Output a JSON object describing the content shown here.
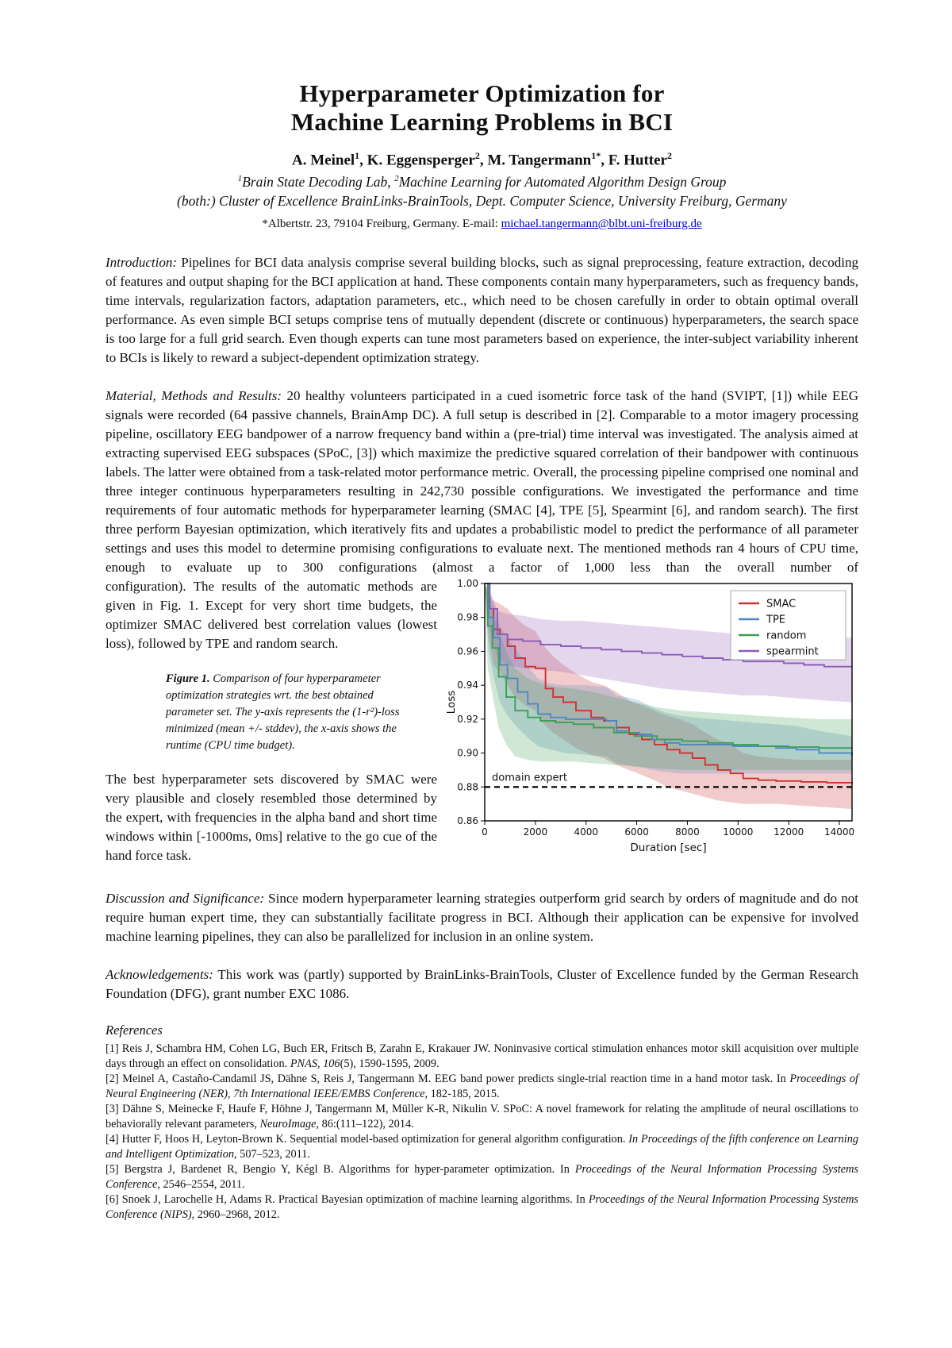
{
  "page": {
    "title_line1": "Hyperparameter Optimization for",
    "title_line2": "Machine Learning Problems in BCI"
  },
  "authors": [
    {
      "name": "A. Meinel",
      "sup": "1"
    },
    {
      "name": ", K. Eggensperger",
      "sup": "2"
    },
    {
      "name": ", M. Tangermann",
      "sup": "1*"
    },
    {
      "name": ", F. Hutter",
      "sup": "2"
    }
  ],
  "affiliation": {
    "line1_parts": [
      {
        "sup": "1",
        "text": "Brain State Decoding Lab,  "
      },
      {
        "sup": "2",
        "text": "Machine Learning for Automated Algorithm Design Group"
      }
    ],
    "line2": "(both:) Cluster of Excellence BrainLinks-BrainTools, Dept. Computer Science, University Freiburg, Germany",
    "contact_prefix": "*Albertstr. 23, 79104 Freiburg, Germany. E-mail: ",
    "email": "michael.tangermann@blbt.uni-freiburg.de"
  },
  "sections": {
    "introduction": {
      "label": "Introduction:",
      "text": " Pipelines for BCI data analysis comprise several building blocks, such as signal preprocessing, feature extraction, decoding of features and output shaping for the BCI application at hand. These components contain many hyperparameters, such as frequency bands, time intervals, regularization factors, adaptation parameters, etc., which need to be chosen carefully in order to obtain optimal overall performance. As even simple BCI setups comprise tens of mutually dependent (discrete or continuous) hyperparameters, the search space is too large for a full grid search. Even though experts can tune most parameters based on experience, the inter-subject variability inherent to BCIs is likely to reward a subject-dependent optimization strategy."
    },
    "methods": {
      "label": "Material, Methods and Results:",
      "text_full": " 20 healthy volunteers participated in a cued isometric force task of the hand (SVIPT, [1]) while EEG signals were recorded (64 passive channels, BrainAmp DC). A full setup is described in [2]. Comparable to a motor imagery processing pipeline, oscillatory EEG bandpower of a narrow frequency band within a (pre-trial) time interval was investigated. The analysis aimed at extracting supervised EEG subspaces (SPoC, [3]) which maximize the predictive squared correlation of their bandpower with continuous labels. The latter were obtained from a task-related motor performance metric. Overall, the processing pipeline comprised one nominal and three integer continuous hyperparameters resulting in 242,730 possible configurations. We investigated the performance and time requirements of four automatic methods for hyperparameter learning (SMAC [4], TPE [5], Spearmint [6], and random search). The first three perform Bayesian optimization, which iteratively fits and updates a probabilistic model to predict the performance of all parameter settings and uses this model to determine promising configurations to evaluate next. The mentioned methods ran 4 hours of CPU time, enough to evaluate up to 300 configurations (almost a factor of 1,000 less than the overall number of"
    },
    "methods_col": "configuration). The results of the automatic methods are given in Fig. 1. Except for very short time budgets, the optimizer SMAC delivered best correlation values (lowest loss), followed by TPE and random search.",
    "smac_para": "The best hyperparameter sets discovered by SMAC were very plausible and closely resembled those determined by the expert, with frequencies in the alpha band and short time windows within [-1000ms, 0ms] relative to the go cue of the hand force task.",
    "discussion": {
      "label": "Discussion and Significance:",
      "text": " Since modern hyperparameter learning strategies outperform grid search by orders of magnitude and do not require human expert time, they can substantially facilitate progress in BCI. Although their application can be expensive for involved machine learning pipelines, they can also be parallelized for inclusion in an online system."
    },
    "acknowledgements": {
      "label": "Acknowledgements:",
      "text": " This work was (partly) supported by BrainLinks-BrainTools, Cluster of Excellence funded by the German Research Foundation (DFG), grant number EXC 1086."
    }
  },
  "figure_caption": {
    "label": "Figure 1.",
    "text": "  Comparison of four hyperparameter optimization strategies wrt. the best obtained parameter set. The y-axis represents the (1-r²)-loss minimized (mean +/- stddev), the x-axis shows the runtime (CPU time budget)."
  },
  "references": {
    "heading": "References",
    "items": [
      {
        "parts": [
          {
            "text": "[1]  Reis J, Schambra HM, Cohen LG, Buch ER, Fritsch B, Zarahn E, Krakauer JW. Noninvasive cortical stimulation enhances motor skill acquisition over multiple days through an effect on consolidation. ",
            "italic": false
          },
          {
            "text": "PNAS, 106",
            "italic": true
          },
          {
            "text": "(5), 1590-1595, 2009.",
            "italic": false
          }
        ]
      },
      {
        "parts": [
          {
            "text": "[2]  Meinel A, Castaño-Candamil JS, Dähne S, Reis J, Tangermann M. EEG band power predicts single-trial reaction time in a hand motor task. In ",
            "italic": false
          },
          {
            "text": "Proceedings of Neural Engineering (NER), 7th International IEEE/EMBS Conference",
            "italic": true
          },
          {
            "text": ", 182-185, 2015.",
            "italic": false
          }
        ]
      },
      {
        "parts": [
          {
            "text": "[3] Dähne S, Meinecke F, Haufe F, Höhne J, Tangermann M, Müller K-R, Nikulin V. SPoC: A novel framework for relating the amplitude of neural oscillations to behaviorally relevant parameters, ",
            "italic": false
          },
          {
            "text": "NeuroImage",
            "italic": true
          },
          {
            "text": ", 86:(111–122),  2014.",
            "italic": false
          }
        ]
      },
      {
        "parts": [
          {
            "text": "[4] Hutter F, Hoos H, Leyton-Brown K. Sequential model-based optimization for general algorithm configuration. ",
            "italic": false
          },
          {
            "text": "In Proceedings of the fifth conference on Learning and Intelligent Optimization",
            "italic": true
          },
          {
            "text": ", 507–523, 2011.",
            "italic": false
          }
        ]
      },
      {
        "parts": [
          {
            "text": "[5] Bergstra J, Bardenet R, Bengio Y, Kégl B. Algorithms for hyper-parameter optimization. In ",
            "italic": false
          },
          {
            "text": "Proceedings of the Neural Information Processing Systems Conference",
            "italic": true
          },
          {
            "text": ", 2546–2554, 2011.",
            "italic": false
          }
        ]
      },
      {
        "parts": [
          {
            "text": "[6] Snoek J, Larochelle H, Adams R. Practical Bayesian optimization of machine learning algorithms. In ",
            "italic": false
          },
          {
            "text": "Proceedings of the Neural Information Processing Systems Conference (NIPS)",
            "italic": true
          },
          {
            "text": ", 2960–2968, 2012.",
            "italic": false
          }
        ]
      }
    ]
  },
  "chart_data": {
    "type": "line",
    "title": "",
    "xlabel": "Duration [sec]",
    "ylabel": "Loss",
    "xlim": [
      0,
      14500
    ],
    "ylim": [
      0.86,
      1.0
    ],
    "xticks": [
      0,
      2000,
      4000,
      6000,
      8000,
      10000,
      12000,
      14000
    ],
    "yticks": [
      1.0,
      0.98,
      0.96,
      0.94,
      0.92,
      0.9,
      0.88,
      0.86
    ],
    "grid": false,
    "legend_position": "upper right",
    "expert": {
      "label": "domain expert",
      "y": 0.88
    },
    "series": [
      {
        "name": "SMAC",
        "color": "#cc3333",
        "x": [
          0,
          150,
          350,
          600,
          900,
          1200,
          1600,
          2000,
          2400,
          2700,
          3100,
          3600,
          4200,
          4700,
          5200,
          5700,
          6200,
          6700,
          7200,
          7700,
          8200,
          8700,
          9200,
          9700,
          10200,
          10800,
          11500,
          12500,
          13500,
          14500
        ],
        "y": [
          1.0,
          0.985,
          0.973,
          0.97,
          0.963,
          0.956,
          0.951,
          0.95,
          0.938,
          0.933,
          0.93,
          0.925,
          0.921,
          0.919,
          0.915,
          0.911,
          0.908,
          0.905,
          0.902,
          0.9,
          0.897,
          0.893,
          0.89,
          0.888,
          0.885,
          0.884,
          0.8835,
          0.883,
          0.8825,
          0.882
        ],
        "lo": [
          1.0,
          0.968,
          0.952,
          0.948,
          0.94,
          0.933,
          0.928,
          0.925,
          0.916,
          0.912,
          0.908,
          0.903,
          0.899,
          0.897,
          0.893,
          0.89,
          0.887,
          0.884,
          0.88,
          0.878,
          0.876,
          0.874,
          0.872,
          0.871,
          0.87,
          0.87,
          0.87,
          0.869,
          0.868,
          0.867
        ],
        "hi": [
          1.0,
          0.995,
          0.99,
          0.988,
          0.985,
          0.98,
          0.975,
          0.972,
          0.962,
          0.957,
          0.952,
          0.947,
          0.942,
          0.94,
          0.936,
          0.931,
          0.928,
          0.925,
          0.922,
          0.92,
          0.917,
          0.912,
          0.908,
          0.905,
          0.9,
          0.898,
          0.897,
          0.896,
          0.896,
          0.896
        ]
      },
      {
        "name": "TPE",
        "color": "#4f87c6",
        "x": [
          0,
          150,
          350,
          600,
          900,
          1300,
          1700,
          2100,
          2600,
          3200,
          4000,
          4800,
          5200,
          5600,
          6100,
          6600,
          7100,
          7700,
          8300,
          9000,
          9800,
          10600,
          11500,
          12300,
          13200,
          14500
        ],
        "y": [
          1.0,
          0.98,
          0.968,
          0.952,
          0.944,
          0.936,
          0.929,
          0.923,
          0.921,
          0.92,
          0.92,
          0.919,
          0.913,
          0.912,
          0.911,
          0.908,
          0.906,
          0.905,
          0.905,
          0.905,
          0.904,
          0.904,
          0.903,
          0.902,
          0.9,
          0.898
        ],
        "lo": [
          1.0,
          0.96,
          0.945,
          0.93,
          0.922,
          0.915,
          0.909,
          0.904,
          0.902,
          0.9,
          0.899,
          0.898,
          0.894,
          0.893,
          0.892,
          0.89,
          0.889,
          0.888,
          0.888,
          0.888,
          0.888,
          0.888,
          0.888,
          0.888,
          0.888,
          0.888
        ],
        "hi": [
          1.0,
          0.993,
          0.988,
          0.975,
          0.968,
          0.96,
          0.951,
          0.944,
          0.941,
          0.94,
          0.94,
          0.939,
          0.934,
          0.933,
          0.931,
          0.927,
          0.924,
          0.922,
          0.921,
          0.92,
          0.919,
          0.918,
          0.917,
          0.916,
          0.913,
          0.91
        ]
      },
      {
        "name": "random",
        "color": "#3f9f55",
        "x": [
          0,
          120,
          300,
          550,
          850,
          1200,
          1700,
          2200,
          2800,
          3500,
          4300,
          5100,
          5900,
          6800,
          7800,
          8800,
          9800,
          10800,
          12000,
          13200,
          14500
        ],
        "y": [
          1.0,
          0.975,
          0.962,
          0.945,
          0.933,
          0.925,
          0.921,
          0.919,
          0.918,
          0.917,
          0.915,
          0.912,
          0.91,
          0.908,
          0.907,
          0.906,
          0.905,
          0.904,
          0.9035,
          0.903,
          0.903
        ],
        "lo": [
          1.0,
          0.95,
          0.935,
          0.915,
          0.905,
          0.898,
          0.896,
          0.895,
          0.895,
          0.895,
          0.894,
          0.893,
          0.892,
          0.891,
          0.89,
          0.89,
          0.89,
          0.89,
          0.89,
          0.89,
          0.89
        ],
        "hi": [
          1.0,
          0.992,
          0.985,
          0.972,
          0.96,
          0.95,
          0.944,
          0.941,
          0.939,
          0.938,
          0.936,
          0.933,
          0.93,
          0.927,
          0.925,
          0.924,
          0.923,
          0.922,
          0.921,
          0.92,
          0.92
        ]
      },
      {
        "name": "spearmint",
        "color": "#8e5bb8",
        "x": [
          0,
          200,
          500,
          900,
          1500,
          2200,
          3000,
          3800,
          4600,
          5400,
          6200,
          7000,
          7800,
          8600,
          9400,
          10200,
          11000,
          11800,
          12600,
          13400,
          14500
        ],
        "y": [
          1.0,
          0.985,
          0.97,
          0.967,
          0.966,
          0.964,
          0.963,
          0.962,
          0.961,
          0.96,
          0.959,
          0.958,
          0.957,
          0.956,
          0.955,
          0.954,
          0.954,
          0.953,
          0.952,
          0.951,
          0.951
        ],
        "lo": [
          1.0,
          0.972,
          0.956,
          0.952,
          0.95,
          0.949,
          0.948,
          0.946,
          0.944,
          0.942,
          0.94,
          0.938,
          0.937,
          0.936,
          0.935,
          0.934,
          0.934,
          0.933,
          0.932,
          0.931,
          0.93
        ],
        "hi": [
          1.0,
          0.995,
          0.984,
          0.982,
          0.981,
          0.979,
          0.978,
          0.978,
          0.977,
          0.976,
          0.975,
          0.974,
          0.973,
          0.972,
          0.971,
          0.97,
          0.97,
          0.969,
          0.968,
          0.968,
          0.968
        ]
      }
    ]
  }
}
